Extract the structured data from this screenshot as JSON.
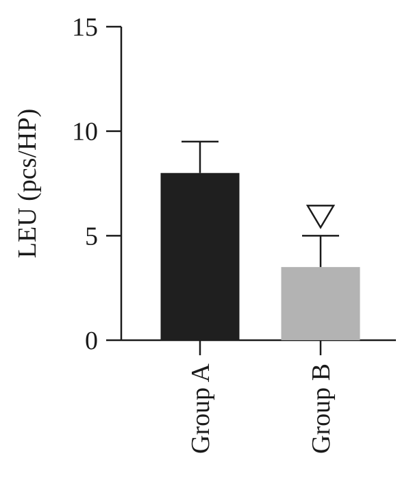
{
  "chart_data": {
    "type": "bar",
    "title": "",
    "xlabel": "",
    "ylabel": "LEU (pcs/HP)",
    "ylim": [
      0,
      15
    ],
    "yticks": [
      0,
      5,
      10,
      15
    ],
    "yticklabels": [
      "0",
      "5",
      "10",
      "15"
    ],
    "categories": [
      "Group A",
      "Group B"
    ],
    "values": [
      8.0,
      3.5
    ],
    "errors": [
      1.5,
      1.5
    ],
    "bar_colors": [
      "#1f1f1f",
      "#b3b3b3"
    ],
    "annotations": [
      {
        "category": "Group B",
        "symbol": "open-down-triangle"
      }
    ],
    "grid": false,
    "legend": "none"
  }
}
